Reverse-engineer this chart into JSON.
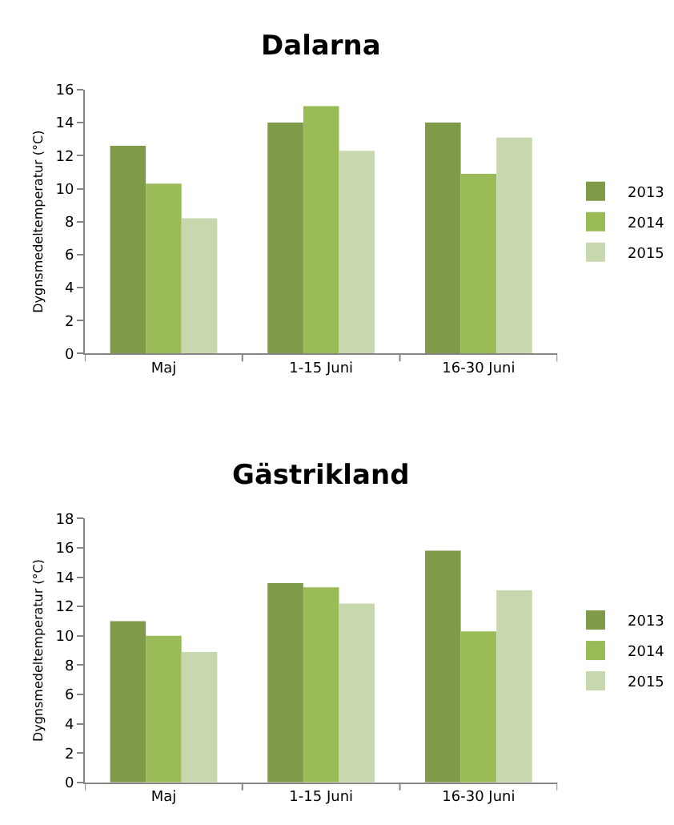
{
  "chart_data": [
    {
      "type": "bar",
      "title": "Dalarna",
      "ylabel": "Dygnsmedeltemperatur (°C)",
      "categories": [
        "Maj",
        "1-15 Juni",
        "16-30 Juni"
      ],
      "series": [
        {
          "name": "2013",
          "color": "#7f9a48",
          "values": [
            12.6,
            14.0,
            14.0
          ]
        },
        {
          "name": "2014",
          "color": "#9bbb59",
          "values": [
            10.3,
            15.0,
            10.9
          ]
        },
        {
          "name": "2015",
          "color": "#c8d8ae",
          "values": [
            8.2,
            12.3,
            13.1
          ]
        }
      ],
      "ylim": [
        0,
        16
      ],
      "yticks": [
        0,
        2,
        4,
        6,
        8,
        10,
        12,
        14,
        16
      ],
      "legend": "right"
    },
    {
      "type": "bar",
      "title": "Gästrikland",
      "ylabel": "Dygnsmedeltemperatur (°C)",
      "categories": [
        "Maj",
        "1-15 Juni",
        "16-30 Juni"
      ],
      "series": [
        {
          "name": "2013",
          "color": "#7f9a48",
          "values": [
            11.0,
            13.6,
            15.8
          ]
        },
        {
          "name": "2014",
          "color": "#9bbb59",
          "values": [
            10.0,
            13.3,
            10.3
          ]
        },
        {
          "name": "2015",
          "color": "#c8d8ae",
          "values": [
            8.9,
            12.2,
            13.1
          ]
        }
      ],
      "ylim": [
        0,
        18
      ],
      "yticks": [
        0,
        2,
        4,
        6,
        8,
        10,
        12,
        14,
        16,
        18
      ],
      "legend": "right"
    }
  ]
}
